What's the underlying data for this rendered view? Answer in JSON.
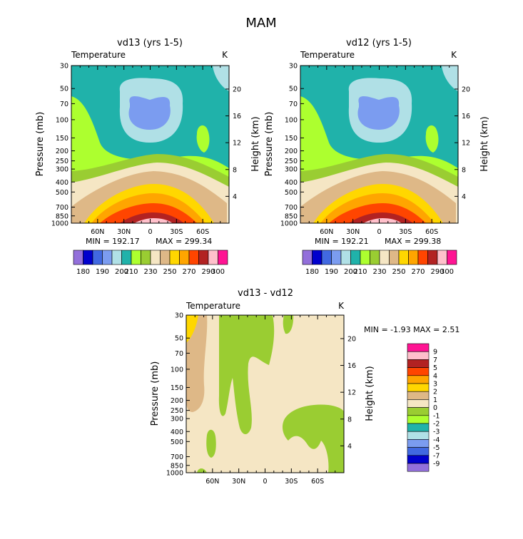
{
  "figure": {
    "title": "MAM"
  },
  "chart_data": [
    {
      "type": "heatmap",
      "title": "vd13 (yrs 1-5)",
      "subtitle_left": "Temperature",
      "subtitle_right": "K",
      "ylabel": "Pressure (mb)",
      "ylabel_right": "Height (km)",
      "x_ticks": [
        "60N",
        "30N",
        "0",
        "30S",
        "60S"
      ],
      "y_ticks": [
        "30",
        "50",
        "70",
        "100",
        "150",
        "200",
        "250",
        "300",
        "400",
        "500",
        "700",
        "850",
        "1000"
      ],
      "y_ticks_right": [
        "20",
        "16",
        "12",
        "8",
        "4"
      ],
      "min_label": "MIN = 192.17",
      "max_label": "MAX = 299.34",
      "colorbar_labels": [
        "180",
        "190",
        "200",
        "210",
        "230",
        "250",
        "270",
        "290",
        "300"
      ]
    },
    {
      "type": "heatmap",
      "title": "vd12 (yrs 1-5)",
      "subtitle_left": "Temperature",
      "subtitle_right": "K",
      "ylabel": "Pressure (mb)",
      "ylabel_right": "Height (km)",
      "x_ticks": [
        "60N",
        "30N",
        "0",
        "30S",
        "60S"
      ],
      "y_ticks": [
        "30",
        "50",
        "70",
        "100",
        "150",
        "200",
        "250",
        "300",
        "400",
        "500",
        "700",
        "850",
        "1000"
      ],
      "y_ticks_right": [
        "20",
        "16",
        "12",
        "8",
        "4"
      ],
      "min_label": "MIN = 192.21",
      "max_label": "MAX = 299.38",
      "colorbar_labels": [
        "180",
        "190",
        "200",
        "210",
        "230",
        "250",
        "270",
        "290",
        "300"
      ]
    },
    {
      "type": "heatmap",
      "title": "vd13 - vd12",
      "subtitle_left": "Temperature",
      "subtitle_right": "K",
      "ylabel": "Pressure (mb)",
      "ylabel_right": "Height (km)",
      "x_ticks": [
        "60N",
        "30N",
        "0",
        "30S",
        "60S"
      ],
      "y_ticks": [
        "30",
        "50",
        "70",
        "100",
        "150",
        "200",
        "250",
        "300",
        "400",
        "500",
        "700",
        "850",
        "1000"
      ],
      "y_ticks_right": [
        "20",
        "16",
        "12",
        "8",
        "4"
      ],
      "minmax_label": "MIN = -1.93 MAX = 2.51",
      "colorbar_labels": [
        "9",
        "7",
        "5",
        "4",
        "3",
        "2",
        "1",
        "0",
        "-1",
        "-2",
        "-3",
        "-4",
        "-5",
        "-7",
        "-9"
      ]
    }
  ],
  "colors": {
    "temp_scale": [
      "#9370db",
      "#0000cd",
      "#4169e1",
      "#7b9cf0",
      "#b0e0e6",
      "#20b2aa",
      "#adff2f",
      "#9acd32",
      "#f5e6c4",
      "#deb887",
      "#ffd700",
      "#ffa500",
      "#ff4500",
      "#b22222",
      "#ffc0cb",
      "#ff1493"
    ],
    "diff_scale": [
      "#ff1493",
      "#ffc0cb",
      "#b22222",
      "#ff4500",
      "#ffa500",
      "#ffd700",
      "#deb887",
      "#f5e6c4",
      "#9acd32",
      "#adff2f",
      "#20b2aa",
      "#b0e0e6",
      "#7b9cf0",
      "#4169e1",
      "#0000cd",
      "#9370db"
    ]
  }
}
